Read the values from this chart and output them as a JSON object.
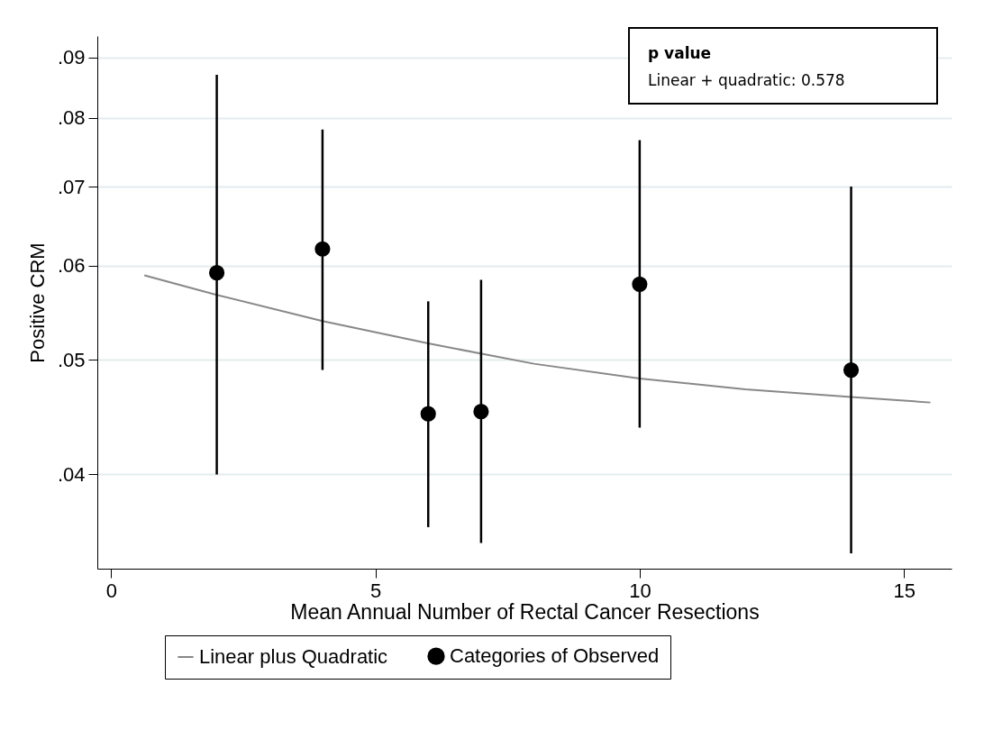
{
  "chart_data": {
    "type": "scatter",
    "xlabel": "Mean Annual Number of Rectal Cancer Resections",
    "ylabel": "Positive CRM",
    "log": "y",
    "grid": "y",
    "legend": "bottom",
    "xlim": [
      -0.26,
      15.9
    ],
    "xticks": [
      0,
      5,
      10,
      15
    ],
    "ylim": [
      0.0333,
      0.0938
    ],
    "yticks": [
      {
        "value": 0.04,
        "label": ".04"
      },
      {
        "value": 0.05,
        "label": ".05"
      },
      {
        "value": 0.06,
        "label": ".06"
      },
      {
        "value": 0.07,
        "label": ".07"
      },
      {
        "value": 0.08,
        "label": ".08"
      },
      {
        "value": 0.09,
        "label": ".09"
      }
    ],
    "annotations": [
      "p value",
      "Linear + quadratic: 0.578"
    ],
    "series": [
      {
        "name": "Linear plus Quadratic",
        "type": "line",
        "marker": "none",
        "color": "#888888",
        "x": [
          0.63,
          2,
          4,
          6,
          8,
          10,
          12,
          14,
          15.5
        ],
        "values": [
          0.0589,
          0.0567,
          0.0539,
          0.0516,
          0.0496,
          0.0482,
          0.0472,
          0.0465,
          0.046
        ]
      },
      {
        "name": "Categories of Observed",
        "marker": "circle",
        "color": "#000000",
        "x": [
          2,
          4,
          6,
          7,
          10,
          14
        ],
        "values": [
          0.0592,
          0.062,
          0.045,
          0.0452,
          0.0579,
          0.049
        ],
        "errors": [
          [
            0.04,
            0.087
          ],
          [
            0.049,
            0.0782
          ],
          [
            0.0361,
            0.056
          ],
          [
            0.035,
            0.0584
          ],
          [
            0.0438,
            0.0766
          ],
          [
            0.0343,
            0.07
          ]
        ]
      }
    ]
  }
}
